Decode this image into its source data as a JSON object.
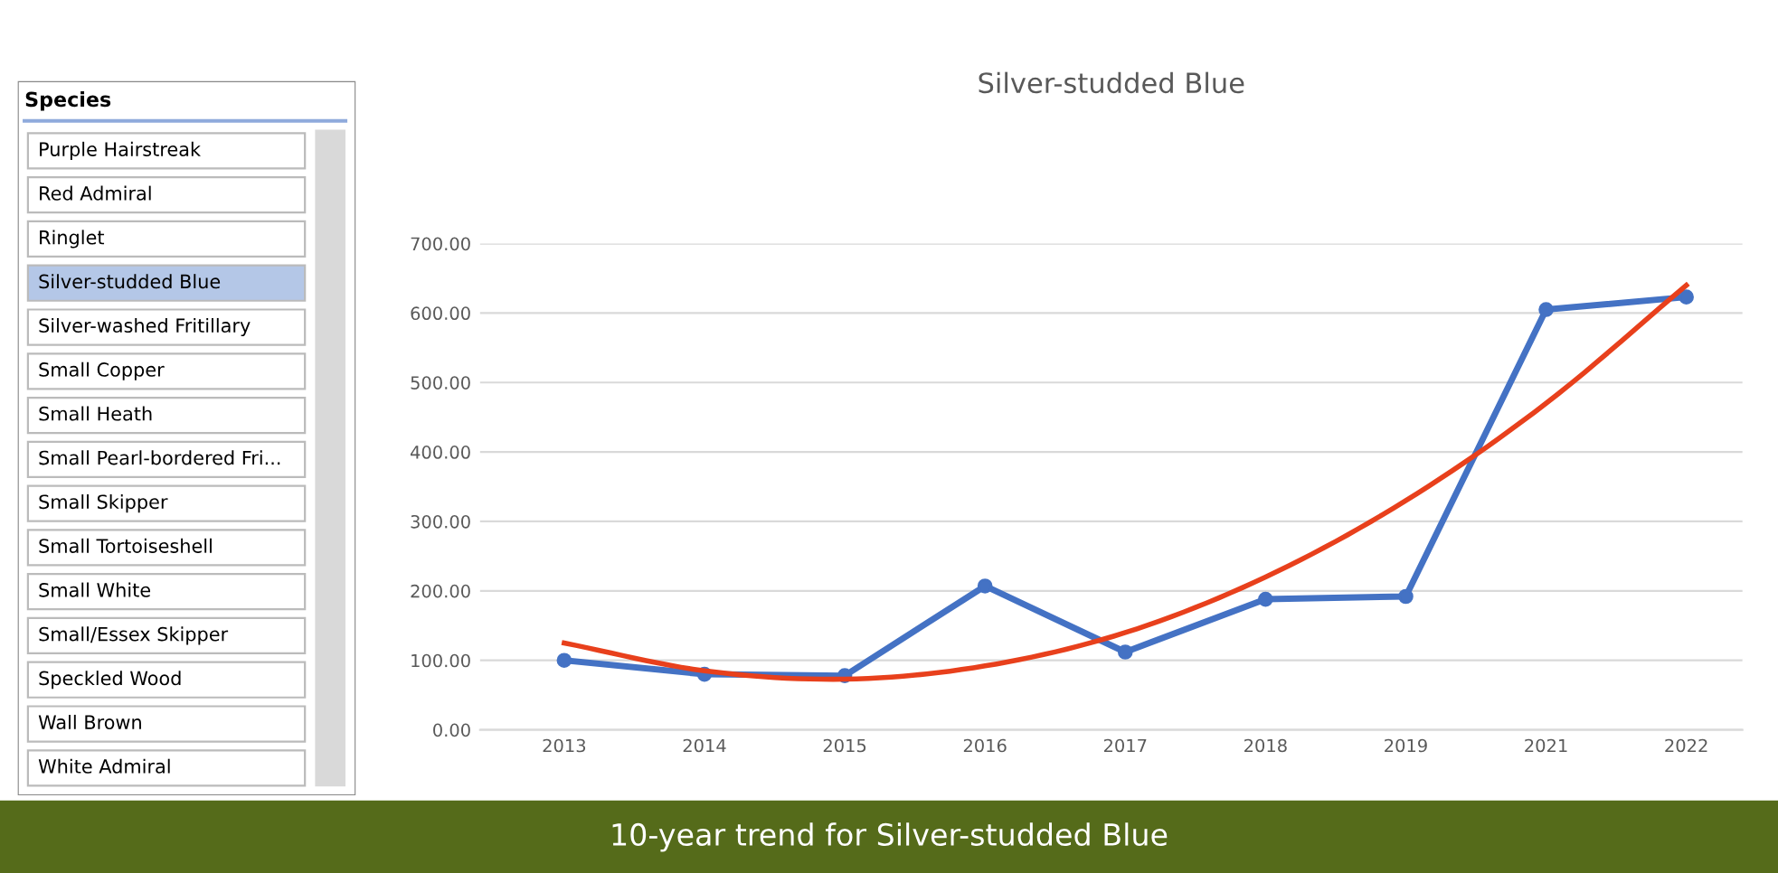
{
  "chart_data": [
    {
      "type": "other",
      "title": "Species",
      "categories": [
        "Purple Hairstreak",
        "Red Admiral",
        "Ringlet",
        "Silver-studded Blue",
        "Silver-washed Fritillary",
        "Small Copper",
        "Small Heath",
        "Small Pearl-bordered Fri...",
        "Small Skipper",
        "Small Tortoiseshell",
        "Small White",
        "Small/Essex Skipper",
        "Speckled Wood",
        "Wall Brown",
        "White Admiral"
      ],
      "colors": [
        "#ffffff",
        "#ffffff",
        "#ffffff",
        "#b4c7e7",
        "#ffffff",
        "#ffffff",
        "#ffffff",
        "#ffffff",
        "#ffffff",
        "#ffffff",
        "#ffffff",
        "#ffffff",
        "#ffffff",
        "#ffffff",
        "#ffffff"
      ]
    },
    {
      "type": "line",
      "title": "Silver-studded Blue",
      "categories": [
        "2013",
        "2014",
        "2015",
        "2016",
        "2017",
        "2018",
        "2019",
        "2021",
        "2022"
      ],
      "series": [
        {
          "color": "#4472c4",
          "marker": "circle",
          "values": [
            100,
            80,
            78,
            207,
            112,
            188,
            192,
            605,
            623
          ]
        },
        {
          "color": "#e8401c",
          "marker": "none",
          "values": [
            125,
            85,
            73,
            92,
            140,
            220,
            330,
            470,
            640
          ]
        }
      ],
      "ylim": [
        0,
        700
      ],
      "yticks": [
        {
          "value": 0,
          "label": "0.00"
        },
        {
          "value": 100,
          "label": "100.00"
        },
        {
          "value": 200,
          "label": "200.00"
        },
        {
          "value": 300,
          "label": "300.00"
        },
        {
          "value": 400,
          "label": "400.00"
        },
        {
          "value": 500,
          "label": "500.00"
        },
        {
          "value": 600,
          "label": "600.00"
        },
        {
          "value": 700,
          "label": "700.00"
        }
      ],
      "grid": "y",
      "legend": false,
      "line_style": "solid",
      "annotations": [
        "10-year trend for Silver-studded Blue"
      ]
    }
  ]
}
